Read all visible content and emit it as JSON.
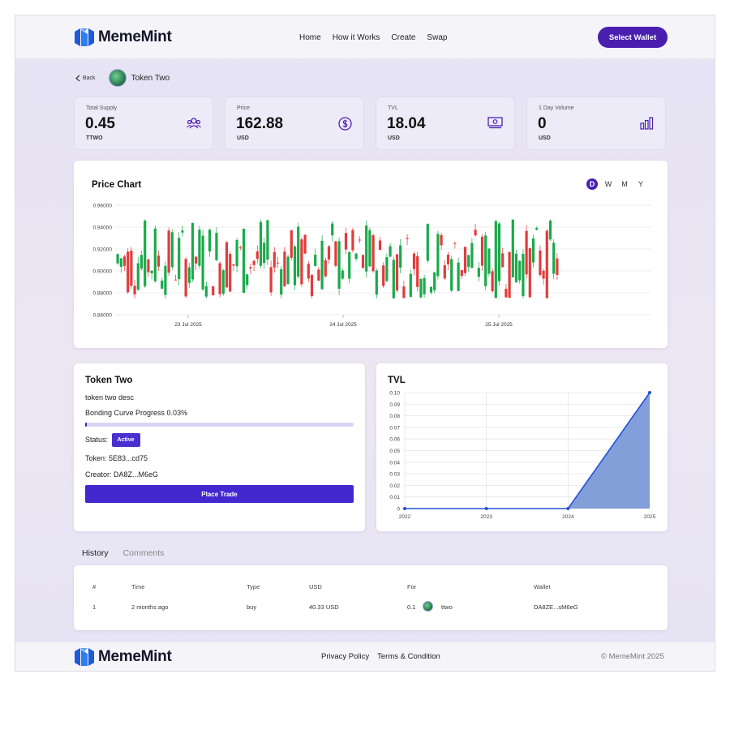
{
  "app": {
    "name": "MemeMint",
    "brand_color": "#4a1fb0"
  },
  "nav": {
    "items": [
      "Home",
      "How it Works",
      "Create",
      "Swap"
    ],
    "wallet_label": "Select Wallet"
  },
  "crumb": {
    "back_label": "Back",
    "token_name": "Token Two"
  },
  "stats": [
    {
      "label": "Total Supply",
      "value": "0.45",
      "unit": "TTWO",
      "icon": "users-icon"
    },
    {
      "label": "Price",
      "value": "162.88",
      "unit": "USD",
      "icon": "dollar-icon"
    },
    {
      "label": "TVL",
      "value": "18.04",
      "unit": "USD",
      "icon": "cash-icon"
    },
    {
      "label": "1 Day Volume",
      "value": "0",
      "unit": "USD",
      "icon": "bar-chart-icon"
    }
  ],
  "price_chart": {
    "title": "Price Chart",
    "ranges": [
      "D",
      "W",
      "M",
      "Y"
    ],
    "active_range": "D"
  },
  "info": {
    "title": "Token Two",
    "description": "token two desc",
    "progress_label": "Bonding Curve Progress 0.03%",
    "progress": 0.0003,
    "status_label": "Status:",
    "status": "Active",
    "token_line": "Token: 5E83...cd75",
    "creator_line": "Creator: DA8Z...M6eG",
    "trade_label": "Place Trade"
  },
  "tabs": [
    "History",
    "Comments"
  ],
  "history": {
    "headers": [
      "#",
      "Time",
      "Type",
      "USD",
      "For",
      "Wallet"
    ],
    "rows": [
      {
        "num": "1",
        "time": "2 months ago",
        "type": "buy",
        "usd": "40.33 USD",
        "for_amount": "0.1",
        "for_token": "ttwo",
        "wallet": "DA8ZE...sM6eG"
      }
    ]
  },
  "footer": {
    "links": [
      "Privacy Policy",
      "Terms & Condition"
    ],
    "copyright": "© MemeMint 2025"
  },
  "chart_data": [
    {
      "type": "candlestick",
      "title": "Price Chart",
      "ylim": [
        0.86,
        0.96
      ],
      "y_ticks": [
        "0.96000",
        "0.94000",
        "0.92000",
        "0.90000",
        "0.88000",
        "0.86000"
      ],
      "y_tick_values": [
        0.96,
        0.94,
        0.92,
        0.9,
        0.88,
        0.86
      ],
      "x_ticks": [
        "23 Jul 2025",
        "24 Jul 2025",
        "25 Jul 2025"
      ],
      "candle_count": 130,
      "price_range_observed": [
        0.875,
        0.947
      ],
      "up_color": "#1aaa4a",
      "down_color": "#e23b3b"
    },
    {
      "type": "area",
      "title": "TVL",
      "x": [
        "2022",
        "2023",
        "2024",
        "2025"
      ],
      "y": [
        0,
        0,
        0,
        0.1
      ],
      "ylim": [
        0,
        0.1
      ],
      "y_ticks": [
        "0.10",
        "0.09",
        "0.08",
        "0.07",
        "0.06",
        "0.05",
        "0.04",
        "0.03",
        "0.02",
        "0.01",
        "0"
      ],
      "y_tick_values": [
        0.1,
        0.09,
        0.08,
        0.07,
        0.06,
        0.05,
        0.04,
        0.03,
        0.02,
        0.01,
        0
      ],
      "line_color": "#2350d8",
      "fill_color": "#7b9ad8"
    }
  ]
}
